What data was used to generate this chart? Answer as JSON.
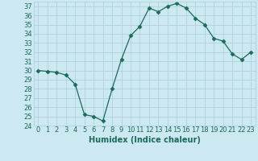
{
  "x": [
    0,
    1,
    2,
    3,
    4,
    5,
    6,
    7,
    8,
    9,
    10,
    11,
    12,
    13,
    14,
    15,
    16,
    17,
    18,
    19,
    20,
    21,
    22,
    23
  ],
  "y": [
    30,
    29.9,
    29.8,
    29.5,
    28.5,
    25.2,
    25.0,
    24.5,
    28.0,
    31.2,
    33.8,
    34.8,
    36.8,
    36.4,
    37.0,
    37.3,
    36.8,
    35.7,
    35.0,
    33.5,
    33.2,
    31.8,
    31.2,
    32.0
  ],
  "line_color": "#1a6b5a",
  "marker": "D",
  "marker_size": 2.5,
  "xlabel": "Humidex (Indice chaleur)",
  "ylim": [
    24,
    37.5
  ],
  "xlim": [
    -0.5,
    23.5
  ],
  "yticks": [
    24,
    25,
    26,
    27,
    28,
    29,
    30,
    31,
    32,
    33,
    34,
    35,
    36,
    37
  ],
  "xticks": [
    0,
    1,
    2,
    3,
    4,
    5,
    6,
    7,
    8,
    9,
    10,
    11,
    12,
    13,
    14,
    15,
    16,
    17,
    18,
    19,
    20,
    21,
    22,
    23
  ],
  "bg_color": "#cce8f0",
  "grid_color": "#aaccd8",
  "tick_color": "#1a6b5a",
  "label_fontsize": 7,
  "tick_fontsize": 6
}
